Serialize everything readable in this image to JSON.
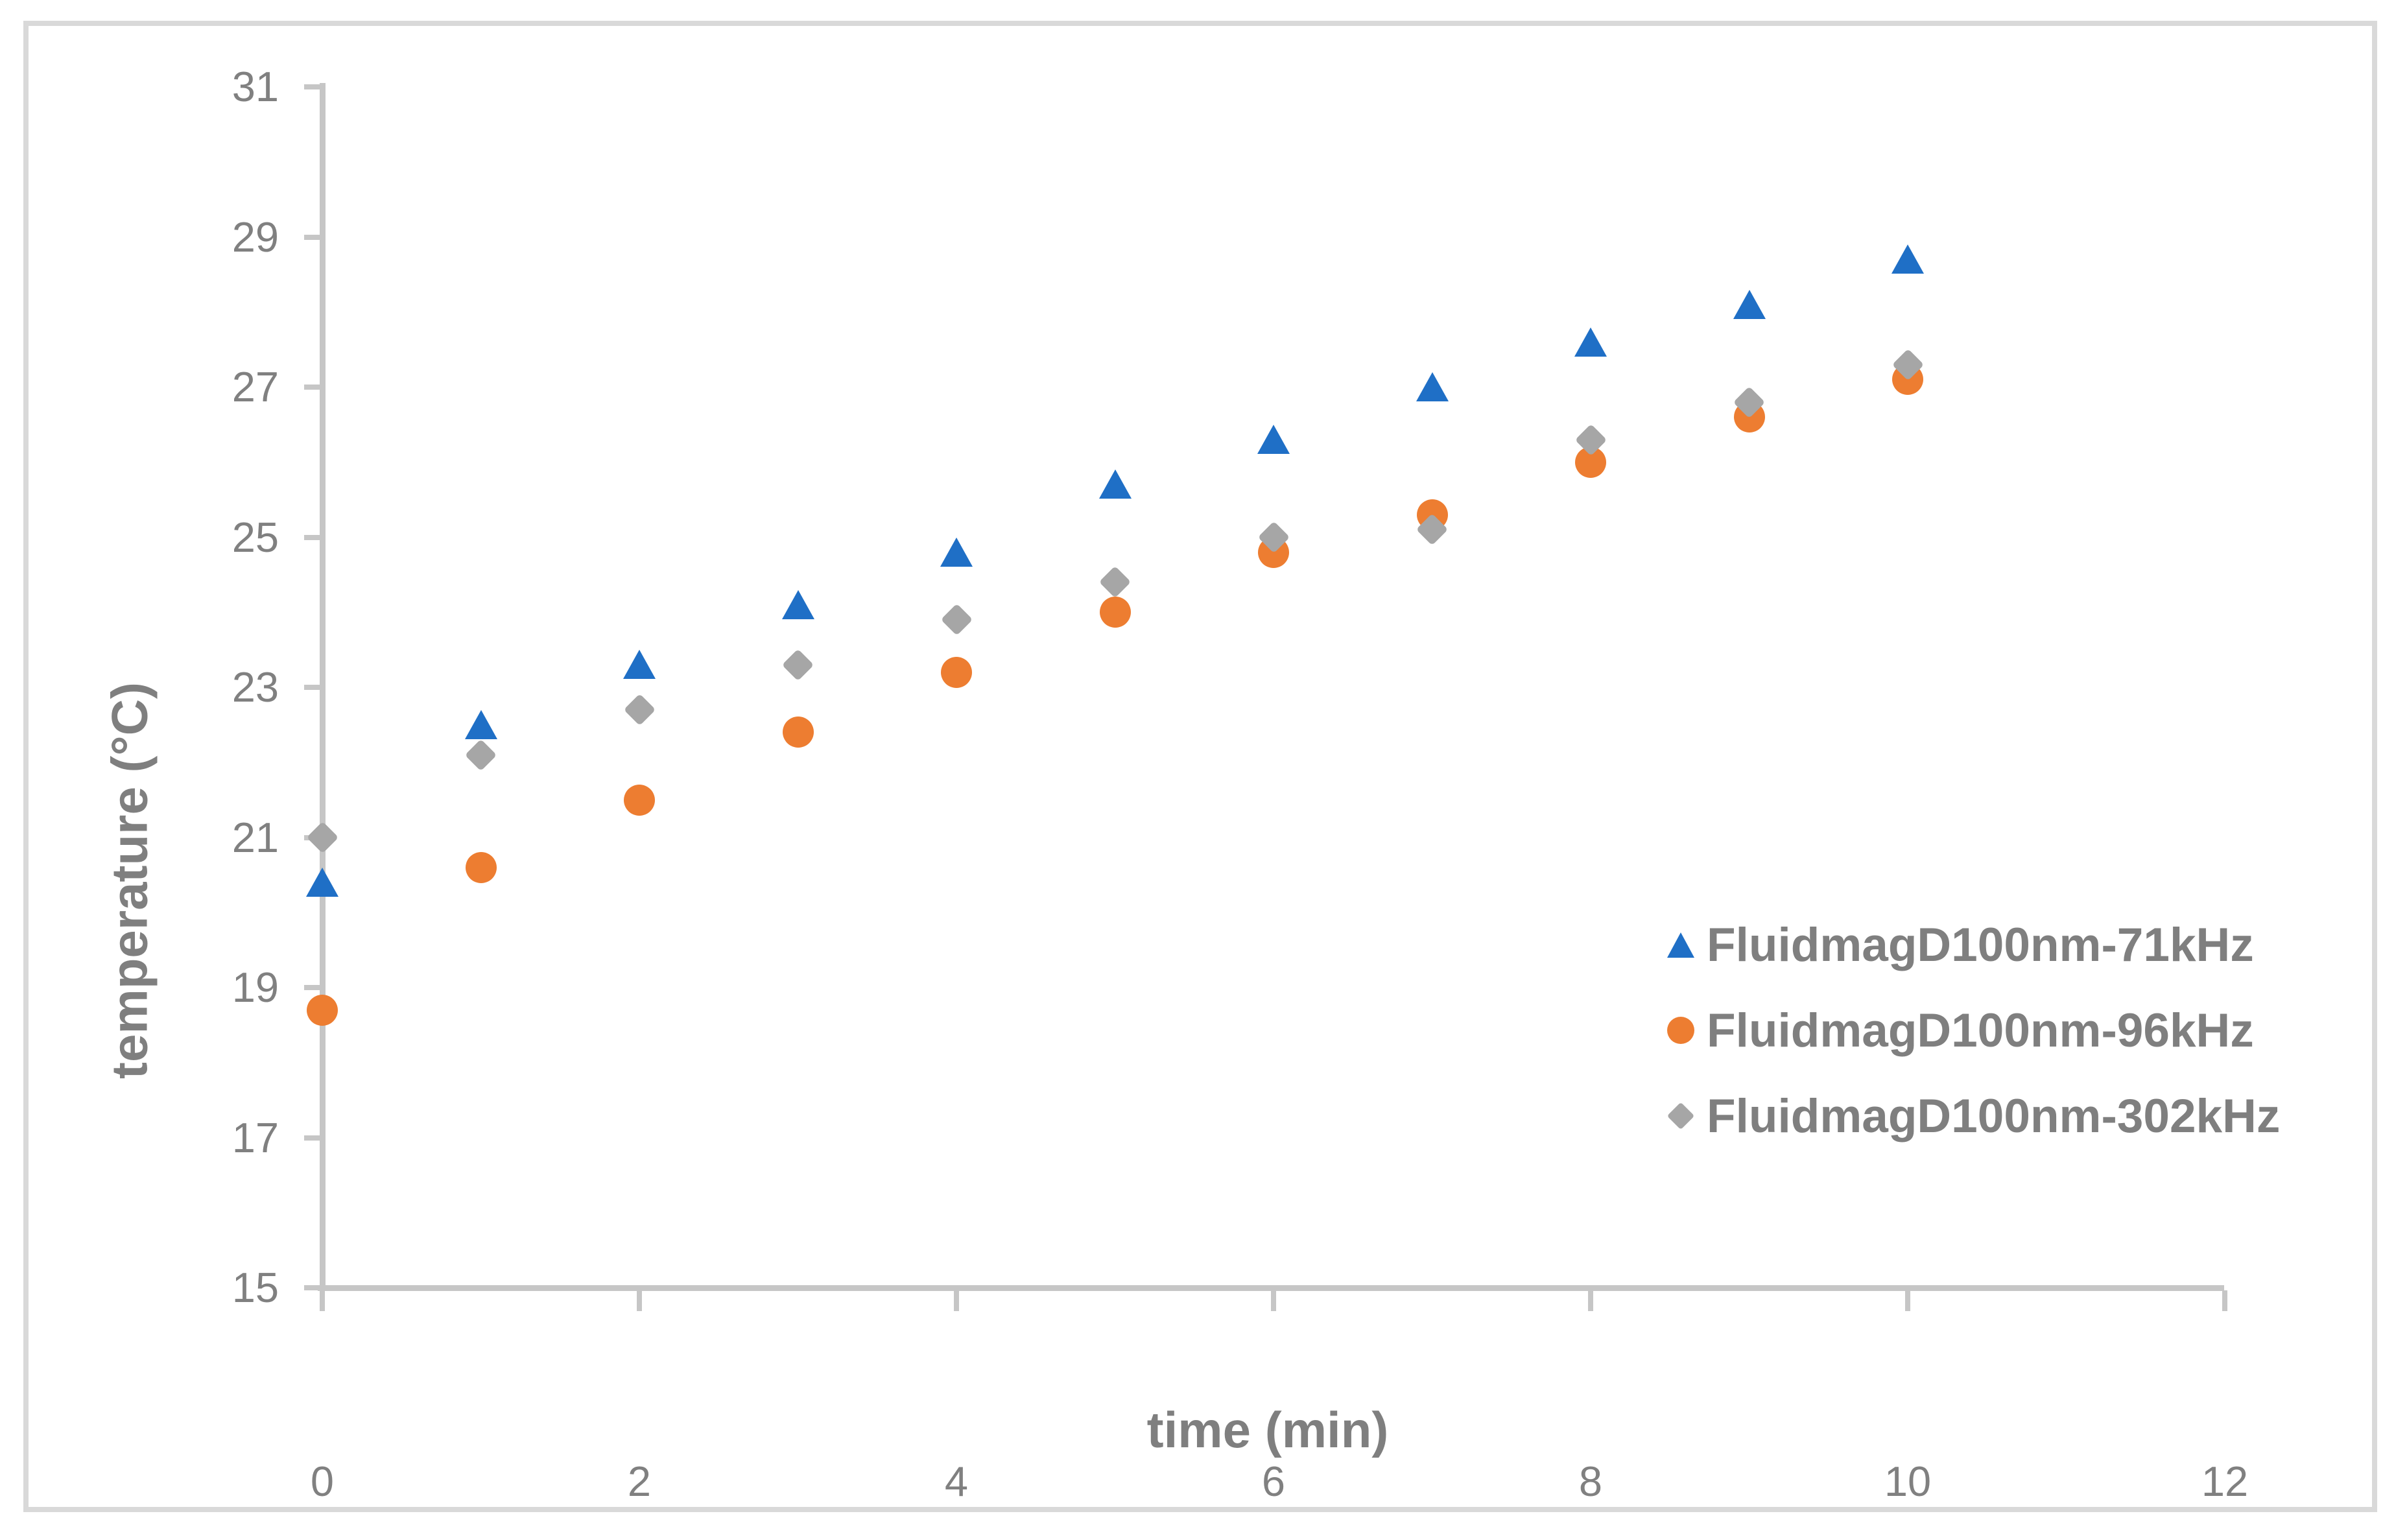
{
  "figure": {
    "background": "#ffffff",
    "border_color": "#d9d9d9",
    "axis_line_color": "#c6c6c6",
    "tick_label_color": "#808080",
    "title_color": "#7f7f7f"
  },
  "chart_data": {
    "type": "scatter",
    "x": [
      0,
      1,
      2,
      3,
      4,
      5,
      6,
      7,
      8,
      9,
      10
    ],
    "series": [
      {
        "name": "FluidmagD100nm-71kHz",
        "marker": "triangle",
        "color": "#1f6fc6",
        "values": [
          20.4,
          22.5,
          23.3,
          24.1,
          24.8,
          25.7,
          26.3,
          27.0,
          27.6,
          28.1,
          28.7
        ]
      },
      {
        "name": "FluidmagD100nm-96kHz",
        "marker": "circle",
        "color": "#ed7d31",
        "values": [
          18.7,
          20.6,
          21.5,
          22.4,
          23.2,
          24.0,
          24.8,
          25.3,
          26.0,
          26.6,
          27.1
        ]
      },
      {
        "name": "FluidmagD100nm-302kHz",
        "marker": "diamond",
        "color": "#a6a6a6",
        "values": [
          21.0,
          22.1,
          22.7,
          23.3,
          23.9,
          24.4,
          25.0,
          25.1,
          26.3,
          26.8,
          27.3
        ]
      }
    ],
    "xlabel": "time (min)",
    "ylabel": "temperature (°C)",
    "xlim": [
      0,
      12
    ],
    "ylim": [
      15,
      31
    ],
    "x_ticks": [
      0,
      2,
      4,
      6,
      8,
      10,
      12
    ],
    "y_ticks": [
      15,
      17,
      19,
      21,
      23,
      25,
      27,
      29,
      31
    ],
    "grid": false,
    "legend_position": "inside-right"
  }
}
